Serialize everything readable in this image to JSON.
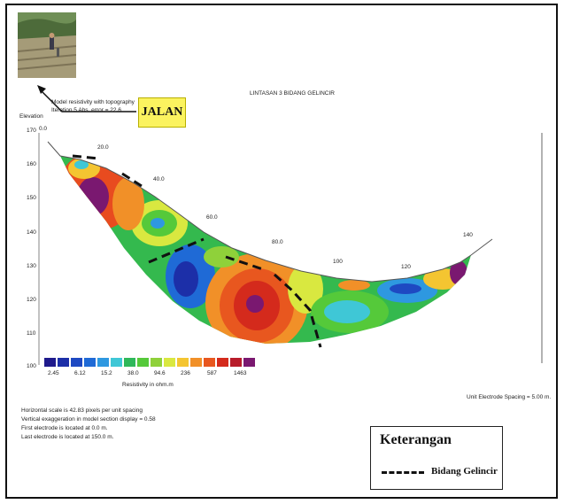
{
  "labels": {
    "jalan": "JALAN",
    "model_line1": "Model resistivity with topography",
    "model_line2": "Iteration 5 Abs. error = 22.6",
    "title": "LINTASAN 3 BIDANG GELINCIR",
    "elevation": "Elevation",
    "unit_spacing": "Unit Electrode Spacing = 5.00 m.",
    "resistivity_unit": "Resistivity in ohm.m",
    "info1": "Horizontal scale is 42.83 pixels per unit spacing",
    "info2": "Vertical exaggeration in model section display = 0.58",
    "info3": "First electrode is located at 0.0  m.",
    "info4": "Last electrode is located at 150.0 m."
  },
  "x_ticks": [
    "0.0",
    "20.0",
    "40.0",
    "60.0",
    "80.0",
    "100",
    "120",
    "140"
  ],
  "y_ticks": [
    "170",
    "160",
    "150",
    "140",
    "130",
    "120",
    "110",
    "100"
  ],
  "colorscale": {
    "colors": [
      "#1f1a8c",
      "#1c2fa8",
      "#1e49c2",
      "#1f6ad6",
      "#2e98e0",
      "#3fc7d6",
      "#2fb85a",
      "#55c93a",
      "#8fd13a",
      "#d9e840",
      "#f4c531",
      "#f19028",
      "#e8571f",
      "#d42a1c",
      "#b81c2a",
      "#7a1870"
    ],
    "labels": [
      "2.45",
      "6.12",
      "15.2",
      "38.0",
      "94.6",
      "236",
      "587",
      "1463"
    ]
  },
  "legend": {
    "title": "Keterangan",
    "item": "Bidang Gelincir"
  },
  "colors": {
    "jalan_bg": "#fbf35f",
    "frame": "#111111"
  }
}
